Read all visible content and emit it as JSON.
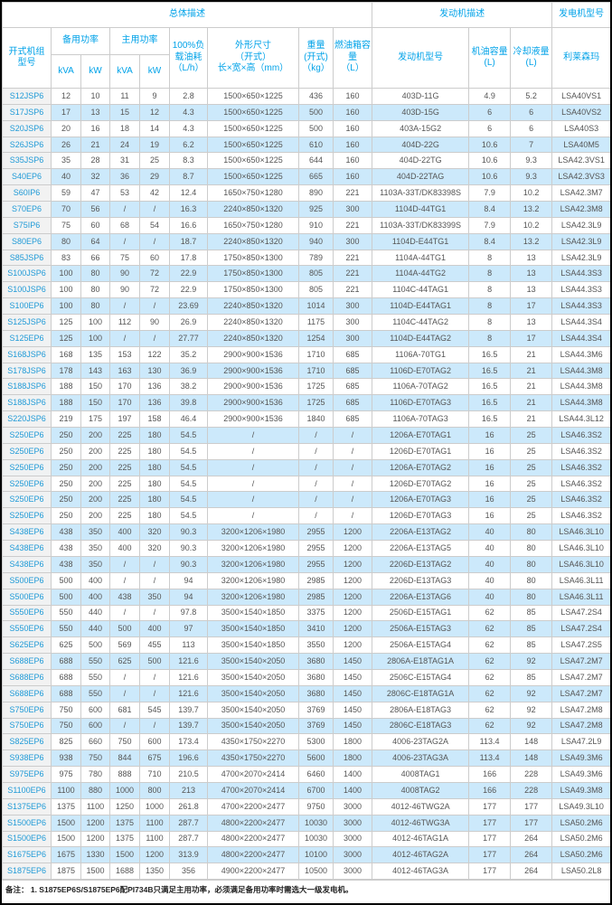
{
  "colors": {
    "accent_cyan": "#00a2e8",
    "model_link_blue": "#1f9ad7",
    "stripe_blue": "#cce9fb",
    "model_col_gray": "#f2f2f2",
    "border_gray": "#cccccc",
    "data_text": "#555555"
  },
  "table": {
    "group_headers": {
      "overall": "总体描述",
      "engine": "发动机描述",
      "alternator": "发电机型号"
    },
    "columns": {
      "model": "开式机组\n型号",
      "standby": "备用功率",
      "prime": "主用功率",
      "kva": "kVA",
      "kw": "kW",
      "fuel_consumption": "100%负\n载油耗\n（L/h）",
      "dimensions": "外形尺寸\n（开式）\n长×宽×高（mm）",
      "weight": "重量\n(开式)\n（kg）",
      "tank": "燃油箱容\n量\n（L）",
      "engine_model": "发动机型号",
      "oil": "机油容量\n(L)",
      "coolant": "冷却液量\n(L)",
      "alternator": "利莱森玛"
    },
    "rows": [
      [
        "S12JSP6",
        "12",
        "10",
        "11",
        "9",
        "2.8",
        "1500×650×1225",
        "436",
        "160",
        "403D-11G",
        "4.9",
        "5.2",
        "LSA40VS1"
      ],
      [
        "S17JSP6",
        "17",
        "13",
        "15",
        "12",
        "4.3",
        "1500×650×1225",
        "500",
        "160",
        "403D-15G",
        "6",
        "6",
        "LSA40VS2"
      ],
      [
        "S20JSP6",
        "20",
        "16",
        "18",
        "14",
        "4.3",
        "1500×650×1225",
        "500",
        "160",
        "403A-15G2",
        "6",
        "6",
        "LSA40S3"
      ],
      [
        "S26JSP6",
        "26",
        "21",
        "24",
        "19",
        "6.2",
        "1500×650×1225",
        "610",
        "160",
        "404D-22G",
        "10.6",
        "7",
        "LSA40M5"
      ],
      [
        "S35JSP6",
        "35",
        "28",
        "31",
        "25",
        "8.3",
        "1500×650×1225",
        "644",
        "160",
        "404D-22TG",
        "10.6",
        "9.3",
        "LSA42.3VS1"
      ],
      [
        "S40EP6",
        "40",
        "32",
        "36",
        "29",
        "8.7",
        "1500×650×1225",
        "665",
        "160",
        "404D-22TAG",
        "10.6",
        "9.3",
        "LSA42.3VS3"
      ],
      [
        "S60IP6",
        "59",
        "47",
        "53",
        "42",
        "12.4",
        "1650×750×1280",
        "890",
        "221",
        "1103A-33T/DK83398S",
        "7.9",
        "10.2",
        "LSA42.3M7"
      ],
      [
        "S70EP6",
        "70",
        "56",
        "/",
        "/",
        "16.3",
        "2240×850×1320",
        "925",
        "300",
        "1104D-44TG1",
        "8.4",
        "13.2",
        "LSA42.3M8"
      ],
      [
        "S75IP6",
        "75",
        "60",
        "68",
        "54",
        "16.6",
        "1650×750×1280",
        "910",
        "221",
        "1103A-33T/DK83399S",
        "7.9",
        "10.2",
        "LSA42.3L9"
      ],
      [
        "S80EP6",
        "80",
        "64",
        "/",
        "/",
        "18.7",
        "2240×850×1320",
        "940",
        "300",
        "1104D-E44TG1",
        "8.4",
        "13.2",
        "LSA42.3L9"
      ],
      [
        "S85JSP6",
        "83",
        "66",
        "75",
        "60",
        "17.8",
        "1750×850×1300",
        "789",
        "221",
        "1104A-44TG1",
        "8",
        "13",
        "LSA42.3L9"
      ],
      [
        "S100JSP6",
        "100",
        "80",
        "90",
        "72",
        "22.9",
        "1750×850×1300",
        "805",
        "221",
        "1104A-44TG2",
        "8",
        "13",
        "LSA44.3S3"
      ],
      [
        "S100JSP6",
        "100",
        "80",
        "90",
        "72",
        "22.9",
        "1750×850×1300",
        "805",
        "221",
        "1104C-44TAG1",
        "8",
        "13",
        "LSA44.3S3"
      ],
      [
        "S100EP6",
        "100",
        "80",
        "/",
        "/",
        "23.69",
        "2240×850×1320",
        "1014",
        "300",
        "1104D-E44TAG1",
        "8",
        "17",
        "LSA44.3S3"
      ],
      [
        "S125JSP6",
        "125",
        "100",
        "112",
        "90",
        "26.9",
        "2240×850×1320",
        "1175",
        "300",
        "1104C-44TAG2",
        "8",
        "13",
        "LSA44.3S4"
      ],
      [
        "S125EP6",
        "125",
        "100",
        "/",
        "/",
        "27.77",
        "2240×850×1320",
        "1254",
        "300",
        "1104D-E44TAG2",
        "8",
        "17",
        "LSA44.3S4"
      ],
      [
        "S168JSP6",
        "168",
        "135",
        "153",
        "122",
        "35.2",
        "2900×900×1536",
        "1710",
        "685",
        "1106A-70TG1",
        "16.5",
        "21",
        "LSA44.3M6"
      ],
      [
        "S178JSP6",
        "178",
        "143",
        "163",
        "130",
        "36.9",
        "2900×900×1536",
        "1710",
        "685",
        "1106D-E70TAG2",
        "16.5",
        "21",
        "LSA44.3M8"
      ],
      [
        "S188JSP6",
        "188",
        "150",
        "170",
        "136",
        "38.2",
        "2900×900×1536",
        "1725",
        "685",
        "1106A-70TAG2",
        "16.5",
        "21",
        "LSA44.3M8"
      ],
      [
        "S188JSP6",
        "188",
        "150",
        "170",
        "136",
        "39.8",
        "2900×900×1536",
        "1725",
        "685",
        "1106D-E70TAG3",
        "16.5",
        "21",
        "LSA44.3M8"
      ],
      [
        "S220JSP6",
        "219",
        "175",
        "197",
        "158",
        "46.4",
        "2900×900×1536",
        "1840",
        "685",
        "1106A-70TAG3",
        "16.5",
        "21",
        "LSA44.3L12"
      ],
      [
        "S250EP6",
        "250",
        "200",
        "225",
        "180",
        "54.5",
        "/",
        "/",
        "/",
        "1206A-E70TAG1",
        "16",
        "25",
        "LSA46.3S2"
      ],
      [
        "S250EP6",
        "250",
        "200",
        "225",
        "180",
        "54.5",
        "/",
        "/",
        "/",
        "1206D-E70TAG1",
        "16",
        "25",
        "LSA46.3S2"
      ],
      [
        "S250EP6",
        "250",
        "200",
        "225",
        "180",
        "54.5",
        "/",
        "/",
        "/",
        "1206A-E70TAG2",
        "16",
        "25",
        "LSA46.3S2"
      ],
      [
        "S250EP6",
        "250",
        "200",
        "225",
        "180",
        "54.5",
        "/",
        "/",
        "/",
        "1206D-E70TAG2",
        "16",
        "25",
        "LSA46.3S2"
      ],
      [
        "S250EP6",
        "250",
        "200",
        "225",
        "180",
        "54.5",
        "/",
        "/",
        "/",
        "1206A-E70TAG3",
        "16",
        "25",
        "LSA46.3S2"
      ],
      [
        "S250EP6",
        "250",
        "200",
        "225",
        "180",
        "54.5",
        "/",
        "/",
        "/",
        "1206D-E70TAG3",
        "16",
        "25",
        "LSA46.3S2"
      ],
      [
        "S438EP6",
        "438",
        "350",
        "400",
        "320",
        "90.3",
        "3200×1206×1980",
        "2955",
        "1200",
        "2206A-E13TAG2",
        "40",
        "80",
        "LSA46.3L10"
      ],
      [
        "S438EP6",
        "438",
        "350",
        "400",
        "320",
        "90.3",
        "3200×1206×1980",
        "2955",
        "1200",
        "2206A-E13TAG5",
        "40",
        "80",
        "LSA46.3L10"
      ],
      [
        "S438EP6",
        "438",
        "350",
        "/",
        "/",
        "90.3",
        "3200×1206×1980",
        "2955",
        "1200",
        "2206D-E13TAG2",
        "40",
        "80",
        "LSA46.3L10"
      ],
      [
        "S500EP6",
        "500",
        "400",
        "/",
        "/",
        "94",
        "3200×1206×1980",
        "2985",
        "1200",
        "2206D-E13TAG3",
        "40",
        "80",
        "LSA46.3L11"
      ],
      [
        "S500EP6",
        "500",
        "400",
        "438",
        "350",
        "94",
        "3200×1206×1980",
        "2985",
        "1200",
        "2206A-E13TAG6",
        "40",
        "80",
        "LSA46.3L11"
      ],
      [
        "S550EP6",
        "550",
        "440",
        "/",
        "/",
        "97.8",
        "3500×1540×1850",
        "3375",
        "1200",
        "2506D-E15TAG1",
        "62",
        "85",
        "LSA47.2S4"
      ],
      [
        "S550EP6",
        "550",
        "440",
        "500",
        "400",
        "97",
        "3500×1540×1850",
        "3410",
        "1200",
        "2506A-E15TAG3",
        "62",
        "85",
        "LSA47.2S4"
      ],
      [
        "S625EP6",
        "625",
        "500",
        "569",
        "455",
        "113",
        "3500×1540×1850",
        "3550",
        "1200",
        "2506A-E15TAG4",
        "62",
        "85",
        "LSA47.2S5"
      ],
      [
        "S688EP6",
        "688",
        "550",
        "625",
        "500",
        "121.6",
        "3500×1540×2050",
        "3680",
        "1450",
        "2806A-E18TAG1A",
        "62",
        "92",
        "LSA47.2M7"
      ],
      [
        "S688EP6",
        "688",
        "550",
        "/",
        "/",
        "121.6",
        "3500×1540×2050",
        "3680",
        "1450",
        "2506C-E15TAG4",
        "62",
        "85",
        "LSA47.2M7"
      ],
      [
        "S688EP6",
        "688",
        "550",
        "/",
        "/",
        "121.6",
        "3500×1540×2050",
        "3680",
        "1450",
        "2806C-E18TAG1A",
        "62",
        "92",
        "LSA47.2M7"
      ],
      [
        "S750EP6",
        "750",
        "600",
        "681",
        "545",
        "139.7",
        "3500×1540×2050",
        "3769",
        "1450",
        "2806A-E18TAG3",
        "62",
        "92",
        "LSA47.2M8"
      ],
      [
        "S750EP6",
        "750",
        "600",
        "/",
        "/",
        "139.7",
        "3500×1540×2050",
        "3769",
        "1450",
        "2806C-E18TAG3",
        "62",
        "92",
        "LSA47.2M8"
      ],
      [
        "S825EP6",
        "825",
        "660",
        "750",
        "600",
        "173.4",
        "4350×1750×2270",
        "5300",
        "1800",
        "4006-23TAG2A",
        "113.4",
        "148",
        "LSA47.2L9"
      ],
      [
        "S938EP6",
        "938",
        "750",
        "844",
        "675",
        "196.6",
        "4350×1750×2270",
        "5600",
        "1800",
        "4006-23TAG3A",
        "113.4",
        "148",
        "LSA49.3M6"
      ],
      [
        "S975EP6",
        "975",
        "780",
        "888",
        "710",
        "210.5",
        "4700×2070×2414",
        "6460",
        "1400",
        "4008TAG1",
        "166",
        "228",
        "LSA49.3M6"
      ],
      [
        "S1100EP6",
        "1100",
        "880",
        "1000",
        "800",
        "213",
        "4700×2070×2414",
        "6700",
        "1400",
        "4008TAG2",
        "166",
        "228",
        "LSA49.3M8"
      ],
      [
        "S1375EP6",
        "1375",
        "1100",
        "1250",
        "1000",
        "261.8",
        "4700×2200×2477",
        "9750",
        "3000",
        "4012-46TWG2A",
        "177",
        "177",
        "LSA49.3L10"
      ],
      [
        "S1500EP6",
        "1500",
        "1200",
        "1375",
        "1100",
        "287.7",
        "4800×2200×2477",
        "10030",
        "3000",
        "4012-46TWG3A",
        "177",
        "177",
        "LSA50.2M6"
      ],
      [
        "S1500EP6",
        "1500",
        "1200",
        "1375",
        "1100",
        "287.7",
        "4800×2200×2477",
        "10030",
        "3000",
        "4012-46TAG1A",
        "177",
        "264",
        "LSA50.2M6"
      ],
      [
        "S1675EP6",
        "1675",
        "1330",
        "1500",
        "1200",
        "313.9",
        "4800×2200×2477",
        "10100",
        "3000",
        "4012-46TAG2A",
        "177",
        "264",
        "LSA50.2M6"
      ],
      [
        "S1875EP6",
        "1875",
        "1500",
        "1688",
        "1350",
        "356",
        "4900×2200×2477",
        "10500",
        "3000",
        "4012-46TAG3A",
        "177",
        "264",
        "LSA50.2L8"
      ]
    ]
  },
  "footer": {
    "note": "备注：  1. S1875EP6S/S1875EP6配PI734B只满足主用功率，必须满足备用功率时需选大一级发电机。"
  }
}
